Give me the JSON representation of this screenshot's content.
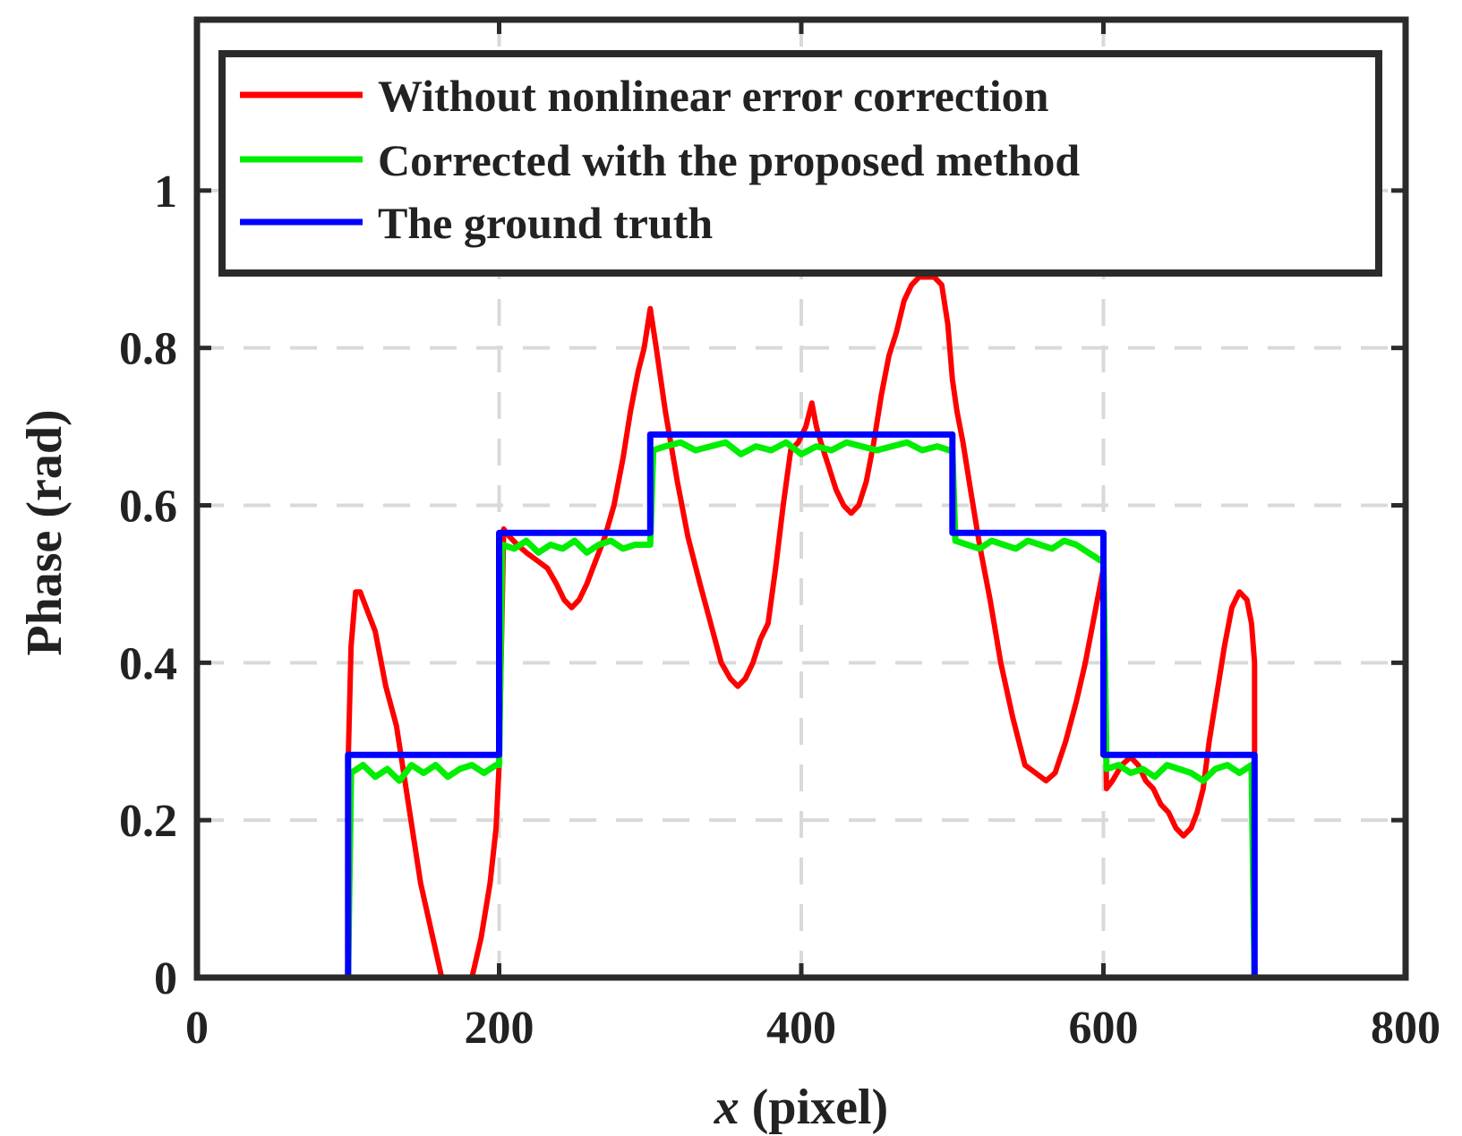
{
  "chart_data": {
    "type": "line",
    "title": "",
    "xlabel_italic": "x",
    "xlabel_rest": " (pixel)",
    "ylabel": "Phase (rad)",
    "xlim": [
      0,
      800
    ],
    "ylim": [
      0,
      1.2
    ],
    "xticks": [
      0,
      200,
      400,
      600,
      800
    ],
    "xtick_labels": [
      "0",
      "200",
      "400",
      "600",
      "800"
    ],
    "yticks": [
      0,
      0.2,
      0.4,
      0.6,
      0.8,
      1
    ],
    "ytick_labels": [
      "0",
      "0.2",
      "0.4",
      "0.6",
      "0.8",
      "1"
    ],
    "grid": true,
    "legend_position": "top",
    "series": [
      {
        "name": "Without nonlinear error correction",
        "color": "#ff0000",
        "x": [
          0,
          100,
          100,
          102,
          105,
          108,
          112,
          118,
          125,
          132,
          140,
          148,
          155,
          162,
          168,
          175,
          182,
          188,
          194,
          198,
          200,
          203,
          207,
          212,
          218,
          225,
          232,
          238,
          243,
          248,
          253,
          258,
          264,
          270,
          276,
          282,
          287,
          292,
          296,
          300,
          304,
          310,
          318,
          325,
          333,
          340,
          347,
          353,
          358,
          363,
          368,
          373,
          378,
          383,
          388,
          393,
          398,
          403,
          407,
          410,
          413,
          418,
          423,
          428,
          433,
          438,
          443,
          448,
          453,
          458,
          463,
          468,
          473,
          478,
          483,
          488,
          493,
          497,
          500,
          503,
          507,
          512,
          518,
          525,
          532,
          540,
          548,
          555,
          562,
          568,
          575,
          582,
          588,
          594,
          598,
          600,
          602,
          606,
          612,
          618,
          623,
          628,
          633,
          638,
          643,
          648,
          653,
          658,
          662,
          666,
          670,
          675,
          680,
          685,
          690,
          695,
          698,
          700,
          700,
          800
        ],
        "y": [
          0,
          0,
          0.27,
          0.42,
          0.49,
          0.49,
          0.47,
          0.44,
          0.37,
          0.32,
          0.22,
          0.12,
          0.06,
          0.0,
          0.0,
          0.0,
          0.0,
          0.05,
          0.12,
          0.19,
          0.27,
          0.57,
          0.56,
          0.55,
          0.54,
          0.53,
          0.52,
          0.5,
          0.48,
          0.47,
          0.48,
          0.5,
          0.53,
          0.56,
          0.6,
          0.66,
          0.72,
          0.77,
          0.8,
          0.85,
          0.8,
          0.72,
          0.63,
          0.56,
          0.5,
          0.45,
          0.4,
          0.38,
          0.37,
          0.38,
          0.4,
          0.43,
          0.45,
          0.52,
          0.6,
          0.67,
          0.68,
          0.7,
          0.73,
          0.7,
          0.68,
          0.65,
          0.62,
          0.6,
          0.59,
          0.6,
          0.63,
          0.68,
          0.74,
          0.79,
          0.82,
          0.86,
          0.88,
          0.89,
          0.89,
          0.89,
          0.88,
          0.83,
          0.76,
          0.72,
          0.68,
          0.62,
          0.55,
          0.48,
          0.4,
          0.33,
          0.27,
          0.26,
          0.25,
          0.26,
          0.3,
          0.35,
          0.4,
          0.46,
          0.5,
          0.52,
          0.24,
          0.25,
          0.27,
          0.28,
          0.27,
          0.25,
          0.24,
          0.22,
          0.21,
          0.19,
          0.18,
          0.19,
          0.21,
          0.24,
          0.3,
          0.36,
          0.42,
          0.47,
          0.49,
          0.48,
          0.45,
          0.4,
          0,
          0
        ]
      },
      {
        "name": "Corrected with the proposed method",
        "color": "#00ee00",
        "x": [
          0,
          100,
          102,
          110,
          118,
          126,
          134,
          142,
          150,
          158,
          166,
          174,
          182,
          190,
          198,
          200,
          202,
          210,
          218,
          226,
          234,
          242,
          250,
          258,
          266,
          274,
          282,
          290,
          298,
          300,
          302,
          310,
          320,
          330,
          340,
          350,
          360,
          370,
          380,
          390,
          400,
          410,
          420,
          430,
          440,
          450,
          460,
          470,
          480,
          490,
          498,
          500,
          502,
          510,
          518,
          526,
          534,
          542,
          550,
          558,
          566,
          574,
          582,
          590,
          598,
          600,
          602,
          610,
          618,
          626,
          634,
          642,
          650,
          658,
          666,
          674,
          682,
          690,
          698,
          700,
          800
        ],
        "y": [
          0,
          0,
          0.26,
          0.27,
          0.255,
          0.265,
          0.25,
          0.27,
          0.26,
          0.27,
          0.255,
          0.265,
          0.27,
          0.26,
          0.27,
          0.27,
          0.55,
          0.545,
          0.555,
          0.54,
          0.55,
          0.545,
          0.555,
          0.54,
          0.55,
          0.555,
          0.545,
          0.55,
          0.55,
          0.55,
          0.67,
          0.675,
          0.68,
          0.67,
          0.675,
          0.68,
          0.665,
          0.675,
          0.67,
          0.68,
          0.665,
          0.675,
          0.67,
          0.68,
          0.675,
          0.67,
          0.675,
          0.68,
          0.67,
          0.675,
          0.67,
          0.67,
          0.555,
          0.55,
          0.545,
          0.555,
          0.55,
          0.545,
          0.555,
          0.55,
          0.545,
          0.555,
          0.55,
          0.54,
          0.53,
          0.53,
          0.265,
          0.27,
          0.26,
          0.265,
          0.255,
          0.27,
          0.265,
          0.26,
          0.25,
          0.265,
          0.27,
          0.26,
          0.27,
          0,
          0
        ]
      },
      {
        "name": "The ground truth",
        "color": "#0000ff",
        "x": [
          0,
          100,
          100,
          200,
          200,
          300,
          300,
          500,
          500,
          600,
          600,
          700,
          700,
          800
        ],
        "y": [
          0,
          0,
          0.283,
          0.283,
          0.565,
          0.565,
          0.69,
          0.69,
          0.565,
          0.565,
          0.283,
          0.283,
          0,
          0
        ]
      }
    ]
  }
}
